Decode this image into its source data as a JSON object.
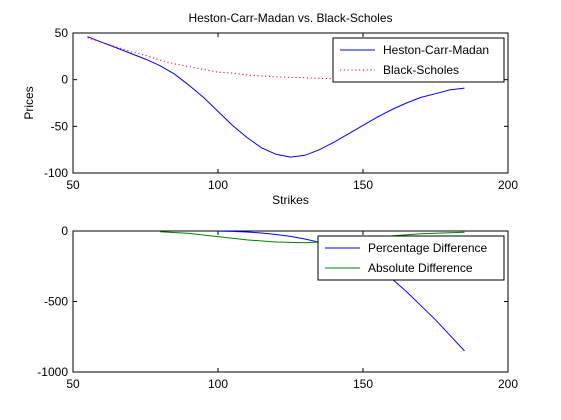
{
  "chart_data": [
    {
      "type": "line",
      "title": "Heston-Carr-Madan vs. Black-Scholes",
      "xlabel": "Strikes",
      "ylabel": "Prices",
      "xlim": [
        50,
        200
      ],
      "ylim": [
        -100,
        50
      ],
      "xticks": [
        "50",
        "100",
        "150",
        "200"
      ],
      "yticks": [
        "50",
        "0",
        "-50",
        "-100"
      ],
      "grid": false,
      "legend_position": "top-right",
      "series": [
        {
          "name": "Heston-Carr-Madan",
          "color": "#0000ff",
          "style": "solid",
          "x": [
            55,
            60,
            65,
            70,
            75,
            80,
            85,
            90,
            95,
            100,
            105,
            110,
            115,
            120,
            125,
            130,
            135,
            140,
            145,
            150,
            155,
            160,
            165,
            170,
            175,
            180,
            185
          ],
          "y": [
            46,
            40,
            34,
            28,
            22,
            15,
            6,
            -6,
            -19,
            -34,
            -49,
            -62,
            -73,
            -80,
            -83,
            -81,
            -75,
            -67,
            -58,
            -49,
            -40,
            -32,
            -25,
            -19,
            -15,
            -11,
            -9
          ]
        },
        {
          "name": "Black-Scholes",
          "color": "#ff0000",
          "style": "dotted",
          "x": [
            55,
            60,
            65,
            70,
            75,
            80,
            85,
            90,
            95,
            100,
            105,
            110,
            115,
            120,
            125,
            130,
            135,
            140,
            145,
            150,
            155
          ],
          "y": [
            45,
            40,
            35,
            30,
            26,
            21,
            17,
            14,
            11,
            8,
            7,
            5,
            4,
            3,
            2.5,
            2,
            1.5,
            1,
            0.8,
            0.5,
            0.3
          ]
        }
      ]
    },
    {
      "type": "line",
      "title": "",
      "xlabel": "",
      "ylabel": "",
      "xlim": [
        50,
        200
      ],
      "ylim": [
        -1000,
        0
      ],
      "xticks": [
        "50",
        "100",
        "150",
        "200"
      ],
      "yticks": [
        "0",
        "-500",
        "-1000"
      ],
      "grid": false,
      "legend_position": "top-right",
      "series": [
        {
          "name": "Percentage Difference",
          "color": "#0000ff",
          "style": "solid",
          "x": [
            100,
            105,
            110,
            115,
            120,
            125,
            130,
            135,
            140,
            145,
            150,
            155,
            160,
            165,
            170,
            175,
            180,
            185
          ],
          "y": [
            -1,
            -3,
            -7,
            -14,
            -25,
            -38,
            -57,
            -80,
            -110,
            -150,
            -200,
            -265,
            -340,
            -430,
            -530,
            -630,
            -740,
            -850
          ]
        },
        {
          "name": "Absolute Difference",
          "color": "#008000",
          "style": "solid",
          "x": [
            80,
            90,
            100,
            110,
            120,
            130,
            140,
            150,
            160,
            170,
            180,
            185
          ],
          "y": [
            -5,
            -17,
            -40,
            -63,
            -78,
            -84,
            -72,
            -54,
            -35,
            -20,
            -12,
            -9
          ]
        }
      ]
    }
  ]
}
